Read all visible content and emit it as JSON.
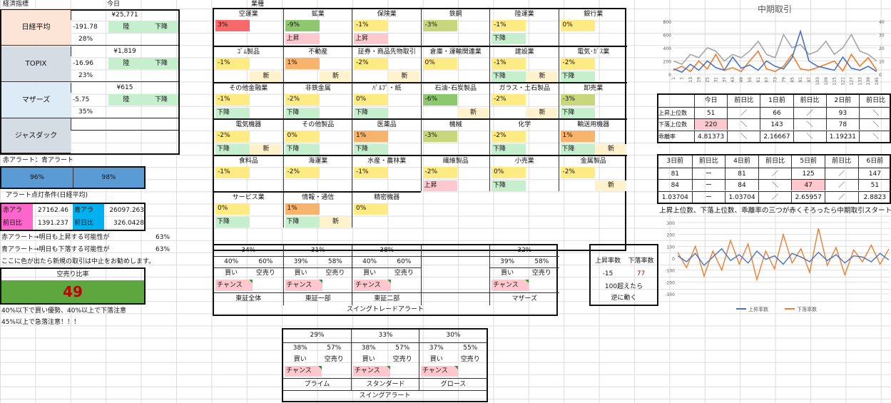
{
  "econ": {
    "header": "経済指標",
    "today_label": "今日",
    "rows": [
      {
        "name": "日経平均",
        "price": "¥25,771",
        "change": "-191.78",
        "pct": "28%",
        "trend": "陸",
        "move": "下降"
      },
      {
        "name": "TOPIX",
        "price": "¥1,819",
        "change": "-16.96",
        "pct": "23%",
        "trend": "陸",
        "move": "下降"
      },
      {
        "name": "マザーズ",
        "price": "¥615",
        "change": "-5.75",
        "pct": "35%",
        "trend": "陸",
        "move": "下降"
      },
      {
        "name": "ジャスダック",
        "price": "",
        "change": "",
        "pct": "",
        "trend": "",
        "move": ""
      }
    ]
  },
  "alert": {
    "title": "赤アラート：青アラート",
    "red_pct": "96%",
    "blue_pct": "98%",
    "cond_title": "アラート点灯条件(日経平均)",
    "red_label": "赤アラ",
    "red_value": "27162.46",
    "blue_label": "青アラ",
    "blue_value": "26097.263",
    "prev_label": "前日比",
    "prev_red": "1391.237",
    "prev_blue": "326.0428",
    "line1": "赤アラート→明日も上昇する可能性が",
    "line1_pct": "63%",
    "line2": "青アラート→明日も下落する可能性が",
    "line2_pct": "63%",
    "line3": "ここに色が出たら新規の取引は中止をお勧めします。",
    "short_title": "空売り比率",
    "short_value": "49",
    "note1": "40%以下で買い優勢、40%以上で下落注意",
    "note2": "45%以上で急落注意！！！"
  },
  "sectors": {
    "header": "業種",
    "items": [
      {
        "name": "空運業",
        "val": "3%",
        "tag": "",
        "extra": ""
      },
      {
        "name": "鉱業",
        "val": "-9%",
        "tag": "上昇",
        "extra": ""
      },
      {
        "name": "保険業",
        "val": "-1%",
        "tag": "上昇",
        "extra": ""
      },
      {
        "name": "鉄鋼",
        "val": "-3%",
        "tag": "",
        "extra": ""
      },
      {
        "name": "陸運業",
        "val": "-1%",
        "tag": "下降",
        "extra": ""
      },
      {
        "name": "銀行業",
        "val": "0%",
        "tag": "",
        "extra": ""
      },
      {
        "name": "ｺﾞﾑ製品",
        "val": "-1%",
        "tag": "",
        "extra": "新"
      },
      {
        "name": "不動産",
        "val": "1%",
        "tag": "",
        "extra": "新"
      },
      {
        "name": "証券・商品先物取引",
        "val": "-2%",
        "tag": "",
        "extra": "新"
      },
      {
        "name": "倉庫・運輸関連業",
        "val": "0%",
        "tag": "",
        "extra": ""
      },
      {
        "name": "建設業",
        "val": "-1%",
        "tag": "下降",
        "extra": "新"
      },
      {
        "name": "電気･ｶﾞｽ業",
        "val": "-2%",
        "tag": "下降",
        "extra": ""
      },
      {
        "name": "その他金融業",
        "val": "-1%",
        "tag": "下降",
        "extra": ""
      },
      {
        "name": "非鉄金属",
        "val": "-2%",
        "tag": "下降",
        "extra": ""
      },
      {
        "name": "ﾊﾟﾙﾌﾟ・紙",
        "val": "0%",
        "tag": "下降",
        "extra": ""
      },
      {
        "name": "石油･石炭製品",
        "val": "-6%",
        "tag": "",
        "extra": "新"
      },
      {
        "name": "ガラス・土石製品",
        "val": "-2%",
        "tag": "",
        "extra": "新"
      },
      {
        "name": "卸売業",
        "val": "-3%",
        "tag": "下降",
        "extra": ""
      },
      {
        "name": "電気機器",
        "val": "-2%",
        "tag": "下降",
        "extra": "新"
      },
      {
        "name": "その他製品",
        "val": "0%",
        "tag": "下降",
        "extra": ""
      },
      {
        "name": "医薬品",
        "val": "1%",
        "tag": "下降",
        "extra": ""
      },
      {
        "name": "機械",
        "val": "-3%",
        "tag": "",
        "extra": ""
      },
      {
        "name": "化学",
        "val": "-2%",
        "tag": "下降",
        "extra": ""
      },
      {
        "name": "輸送用機器",
        "val": "1%",
        "tag": "下降",
        "extra": "新"
      },
      {
        "name": "食料品",
        "val": "-1%",
        "tag": "",
        "extra": ""
      },
      {
        "name": "海運業",
        "val": "-2%",
        "tag": "",
        "extra": ""
      },
      {
        "name": "水産・農林業",
        "val": "-1%",
        "tag": "",
        "extra": ""
      },
      {
        "name": "繊維製品",
        "val": "-2%",
        "tag": "上昇",
        "extra": ""
      },
      {
        "name": "小売業",
        "val": "0%",
        "tag": "下降",
        "extra": ""
      },
      {
        "name": "金属製品",
        "val": "-2%",
        "tag": "",
        "extra": "新"
      },
      {
        "name": "サービス業",
        "val": "0%",
        "tag": "下降",
        "extra": ""
      },
      {
        "name": "情報・通信",
        "val": "1%",
        "tag": "下降",
        "extra": "新"
      },
      {
        "name": "精密機器",
        "val": "0%",
        "tag": "",
        "extra": ""
      }
    ]
  },
  "swing1": {
    "title": "スイングトレードアラート",
    "buy_label": "買い",
    "short_label": "空売り",
    "chance": "チャンス",
    "groups": [
      {
        "top": "34%",
        "a": "40%",
        "b": "60%",
        "chance": true,
        "name": "東証全体"
      },
      {
        "top": "31%",
        "a": "39%",
        "b": "58%",
        "chance": true,
        "name": "東証一部"
      },
      {
        "top": "38%",
        "a": "40%",
        "b": "60%",
        "chance": true,
        "name": "東証二部"
      },
      {
        "top": "",
        "a": "",
        "b": "",
        "chance": false,
        "name": ""
      },
      {
        "top": "32%",
        "a": "39%",
        "b": "58%",
        "chance": true,
        "name": "マザーズ"
      }
    ]
  },
  "swing2": {
    "title": "スイングアラート",
    "groups": [
      {
        "top": "29%",
        "a": "38%",
        "b": "57%",
        "name": "プライム"
      },
      {
        "top": "33%",
        "a": "38%",
        "b": "57%",
        "name": "スタンダード"
      },
      {
        "top": "30%",
        "a": "37%",
        "b": "55%",
        "name": "グロース"
      }
    ]
  },
  "updown": {
    "h1": "上昇率数",
    "h2": "下落率数",
    "v1": "-15",
    "v2": "77",
    "note1": "100超えたら",
    "note2": "逆に動く"
  },
  "mid": {
    "headers": [
      "今日",
      "前日比",
      "1日前",
      "前日比",
      "2日前",
      "前日比"
    ],
    "rows": [
      {
        "label": "上昇上位数",
        "cells": [
          "51",
          "／",
          "66",
          "／",
          "93",
          "＼"
        ]
      },
      {
        "label": "下落上位数",
        "cells": [
          "220",
          "＼",
          "143",
          "＼",
          "78",
          "＼"
        ]
      },
      {
        "label": "乖離率",
        "cells": [
          "4.81373",
          "＼",
          "2.16667",
          "＼",
          "1.19231",
          "＼"
        ]
      }
    ],
    "headers2": [
      "3日前",
      "前日比",
      "4日前",
      "前日比",
      "5日前",
      "前日比",
      "6日前"
    ],
    "rows2": [
      [
        "81",
        "ー",
        "81",
        "／",
        "125",
        "／",
        "147"
      ],
      [
        "84",
        "ー",
        "84",
        "＼",
        "47",
        "／",
        "51"
      ],
      [
        "1.03704",
        "ー",
        "1.03704",
        "／",
        "2.65957",
        "／",
        "2.8823"
      ]
    ],
    "note": "上昇上位数、下落上位数、乖離率の三つが赤くそろったら中期取引スタート"
  },
  "chart_data": [
    {
      "type": "line",
      "title": "中期取引",
      "ylim": [
        0,
        800
      ],
      "y2lim": [
        0,
        40
      ],
      "x": [
        "1",
        "7",
        "13",
        "19",
        "25",
        "31",
        "37",
        "43",
        "49",
        "55",
        "61",
        "67",
        "73",
        "79",
        "85",
        "91",
        "97",
        "103",
        "109",
        "115",
        "121",
        "127",
        "133",
        "139",
        "145"
      ],
      "series": [
        {
          "name": "",
          "color": "#4472c4",
          "values": [
            80,
            30,
            150,
            60,
            200,
            100,
            60,
            260,
            90,
            140,
            60,
            200,
            120,
            80,
            250,
            650,
            200,
            120,
            90,
            60,
            260,
            90,
            60,
            120,
            40
          ]
        },
        {
          "name": "",
          "color": "#ed7d31",
          "values": [
            60,
            120,
            40,
            200,
            80,
            300,
            60,
            100,
            40,
            200,
            350,
            80,
            40,
            120,
            300,
            80,
            60,
            100,
            150,
            200,
            50,
            300,
            120,
            250,
            60
          ]
        },
        {
          "name": "",
          "color": "#a5a5a5",
          "values": [
            200,
            150,
            300,
            250,
            400,
            350,
            200,
            300,
            250,
            350,
            500,
            300,
            250,
            600,
            400,
            450,
            300,
            350,
            500,
            300,
            400,
            600,
            350,
            300,
            200
          ]
        }
      ]
    },
    {
      "type": "line",
      "ylim": [
        -300,
        300
      ],
      "yticks": [
        -300,
        -200,
        -100,
        0,
        100,
        200,
        300
      ],
      "series": [
        {
          "name": "上昇率数",
          "color": "#4472c4",
          "values": [
            20,
            -30,
            40,
            -60,
            10,
            80,
            -20,
            30,
            -40,
            60,
            -10,
            20,
            -50,
            40,
            10,
            -30,
            50,
            -20,
            30,
            -40,
            20,
            10,
            -30,
            40,
            -15
          ]
        },
        {
          "name": "下落率数",
          "color": "#ed7d31",
          "values": [
            50,
            -80,
            100,
            -150,
            60,
            -100,
            150,
            -50,
            120,
            -180,
            60,
            -90,
            200,
            -40,
            80,
            -120,
            250,
            -60,
            90,
            -140,
            70,
            -30,
            110,
            -50,
            77
          ]
        }
      ]
    }
  ]
}
